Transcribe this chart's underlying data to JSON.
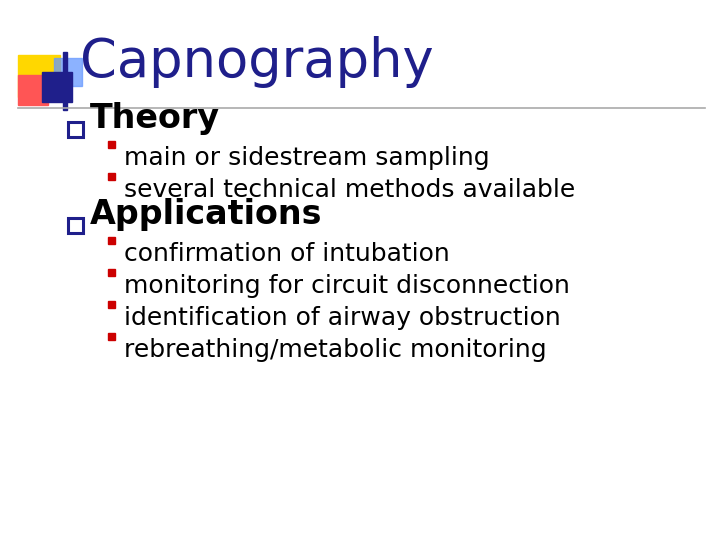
{
  "title": "Capnography",
  "title_color": "#1F1F8B",
  "title_fontsize": 38,
  "bg_color": "#FFFFFF",
  "section1": "Theory",
  "section2": "Applications",
  "section_fontsize": 24,
  "section_color": "#000000",
  "bullet_color": "#CC0000",
  "bullet_fontsize": 18,
  "bullets1": [
    "main or sidestream sampling",
    "several technical methods available"
  ],
  "bullets2": [
    "confirmation of intubation",
    "monitoring for circuit disconnection",
    "identification of airway obstruction",
    "rebreathing/metabolic monitoring"
  ],
  "deco_yellow": "#FFD700",
  "deco_red": "#FF5555",
  "deco_blue_dark": "#1F1F8B",
  "deco_blue_light": "#6699FF",
  "separator_color": "#AAAAAA",
  "checkbox_color": "#1F1F8B"
}
